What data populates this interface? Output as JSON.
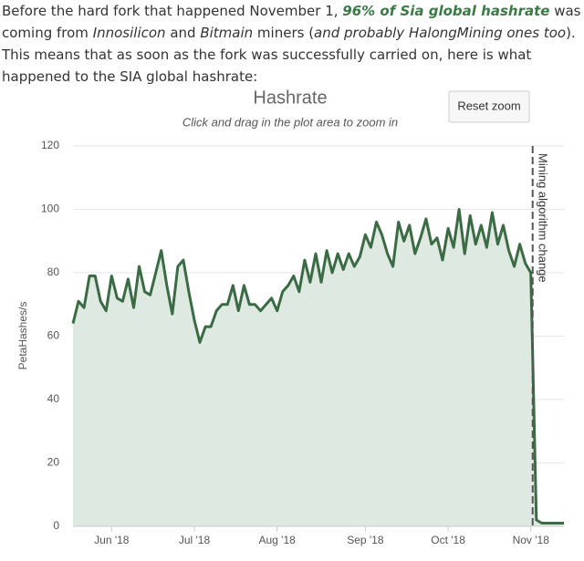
{
  "paragraph": [
    "Before the hard fork that happened November 1, ",
    "96% of Sia global hashrate",
    " was coming from ",
    "Innosilicon",
    " and ",
    "Bitmain",
    " miners (",
    "and probably HalongMining ones too",
    "). This means that as soon as the fork was successfully carried on, here is what happened to the SIA global hashrate:"
  ],
  "chart_data": {
    "type": "area",
    "title": "Hashrate",
    "subtitle": "Click and drag in the plot area to zoom in",
    "button": "Reset zoom",
    "y_label": "PetaHashes/s",
    "annotation": "Mining algorithm change",
    "categories": [
      null,
      null,
      null,
      null,
      null,
      null,
      null,
      "Jun '18",
      null,
      null,
      null,
      null,
      null,
      null,
      null,
      null,
      null,
      null,
      null,
      null,
      null,
      null,
      "Jul '18",
      null,
      null,
      null,
      null,
      null,
      null,
      null,
      null,
      null,
      null,
      null,
      null,
      null,
      null,
      "Aug '18",
      null,
      null,
      null,
      null,
      null,
      null,
      null,
      null,
      null,
      null,
      null,
      null,
      null,
      null,
      null,
      "Sep '18",
      null,
      null,
      null,
      null,
      null,
      null,
      null,
      null,
      null,
      null,
      null,
      null,
      null,
      null,
      "Oct '18",
      null,
      null,
      null,
      null,
      null,
      null,
      null,
      null,
      null,
      null,
      null,
      null,
      null,
      null,
      "Nov '18",
      null,
      null,
      null,
      null,
      null,
      null
    ],
    "values": [
      64,
      71,
      69,
      79,
      79,
      71,
      68,
      79,
      72,
      71,
      78,
      69,
      82,
      74,
      73,
      80,
      87,
      76,
      67,
      82,
      84,
      74,
      65,
      58,
      63,
      63,
      68,
      70,
      70,
      76,
      68,
      76,
      70,
      70,
      68,
      70,
      72,
      68,
      74,
      76,
      79,
      74,
      84,
      77,
      86,
      77,
      87,
      80,
      86,
      81,
      86,
      82,
      85,
      92,
      88,
      96,
      92,
      86,
      82,
      96,
      90,
      95,
      86,
      91,
      97,
      89,
      91,
      84,
      94,
      88,
      100,
      86,
      98,
      89,
      95,
      88,
      99,
      89,
      95,
      87,
      82,
      89,
      83,
      80,
      2,
      1,
      1,
      1,
      1,
      1
    ],
    "color": "#3b6b45",
    "area_color": "#dde9e1",
    "ylim": [
      0,
      120
    ],
    "yticks": [
      0,
      20,
      40,
      60,
      80,
      100,
      120
    ],
    "grid": true
  }
}
